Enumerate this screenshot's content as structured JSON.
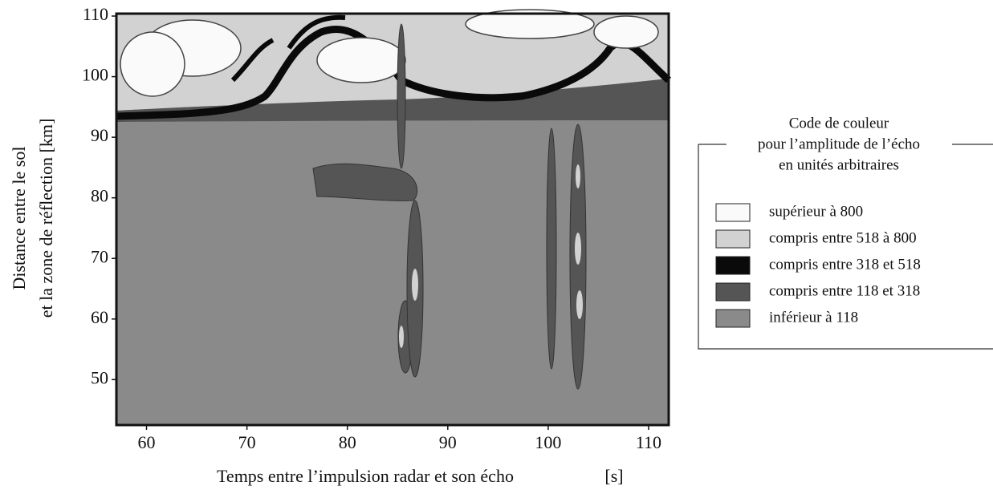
{
  "chart_data": {
    "type": "contour",
    "xlabel": "Temps entre l’impulsion radar et son écho",
    "xlabel_unit": "[s]",
    "ylabel": [
      "Distance entre le sol",
      "et la zone de réflection [km]"
    ],
    "xlim": [
      57,
      112
    ],
    "xticks": [
      60,
      70,
      80,
      90,
      100,
      110
    ],
    "ylim": [
      42.5,
      110.4
    ],
    "yticks": [
      50,
      60,
      70,
      80,
      90,
      100,
      110
    ],
    "legend": {
      "title": [
        "Code de couleur",
        "pour l’amplitude de l’écho",
        "en unités arbitraires"
      ],
      "position": "right"
    },
    "levels": [
      {
        "name": "supérieur à 800",
        "color": "#fafafa"
      },
      {
        "name": "compris entre 518 à 800",
        "color": "#d2d2d2"
      },
      {
        "name": "compris entre 318 et 518",
        "color": "#0a0a0a"
      },
      {
        "name": "compris entre 118 et 318",
        "color": "#555555"
      },
      {
        "name": "inférieur à 118",
        "color": "#8a8a8a"
      }
    ]
  }
}
